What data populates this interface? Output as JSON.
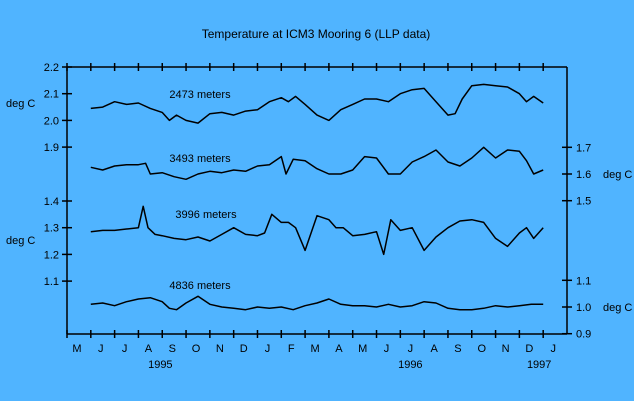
{
  "chart_data": {
    "type": "line",
    "title": "Temperature at ICM3 Mooring 6 (LLP data)",
    "x_range": [
      "1995-05-01",
      "1997-01-01"
    ],
    "x_ticks": [
      "M",
      "J",
      "J",
      "A",
      "S",
      "O",
      "N",
      "D",
      "J",
      "F",
      "M",
      "A",
      "M",
      "J",
      "J",
      "A",
      "S",
      "O",
      "N",
      "D",
      "J"
    ],
    "year_labels": [
      {
        "label": "1995",
        "month_index": 3.5
      },
      {
        "label": "1996",
        "month_index": 14
      },
      {
        "label": "1997",
        "month_index": 20
      }
    ],
    "left_axes": [
      {
        "unit": "deg C",
        "ticks": [
          "2.2",
          "2.1",
          "2.0",
          "1.9"
        ],
        "range": [
          1.9,
          2.2
        ]
      },
      {
        "unit": "deg C",
        "ticks": [
          "1.4",
          "1.3",
          "1.2",
          "1.1"
        ],
        "range": [
          1.1,
          1.4
        ]
      }
    ],
    "right_axes": [
      {
        "unit": "deg C",
        "ticks": [
          "1.7",
          "1.6",
          "1.5"
        ],
        "range": [
          1.5,
          1.7
        ]
      },
      {
        "unit": "deg C",
        "ticks": [
          "1.1",
          "1.0",
          "0.9"
        ],
        "range": [
          0.9,
          1.1
        ]
      }
    ],
    "series": [
      {
        "name": "2473 meters",
        "axis": "left-upper",
        "x_month": [
          1.0,
          1.5,
          2.0,
          2.5,
          3.0,
          3.5,
          4.0,
          4.3,
          4.6,
          5.0,
          5.5,
          6.0,
          6.5,
          7.0,
          7.5,
          8.0,
          8.5,
          9.0,
          9.3,
          9.6,
          10.0,
          10.5,
          11.0,
          11.5,
          12.0,
          12.5,
          13.0,
          13.5,
          14.0,
          14.5,
          15.0,
          15.5,
          16.0,
          16.3,
          16.6,
          17.0,
          17.5,
          18.0,
          18.5,
          19.0,
          19.3,
          19.6,
          20.0
        ],
        "values": [
          2.045,
          2.05,
          2.07,
          2.06,
          2.065,
          2.045,
          2.03,
          2.0,
          2.02,
          2.0,
          1.99,
          2.025,
          2.03,
          2.02,
          2.035,
          2.04,
          2.07,
          2.085,
          2.07,
          2.09,
          2.06,
          2.02,
          2.0,
          2.04,
          2.06,
          2.08,
          2.08,
          2.07,
          2.1,
          2.115,
          2.12,
          2.07,
          2.02,
          2.025,
          2.08,
          2.13,
          2.135,
          2.13,
          2.125,
          2.1,
          2.07,
          2.09,
          2.065
        ]
      },
      {
        "name": "3493 meters",
        "axis": "right-upper",
        "x_month": [
          1.0,
          1.5,
          2.0,
          2.5,
          3.0,
          3.3,
          3.5,
          4.0,
          4.5,
          5.0,
          5.5,
          6.0,
          6.5,
          7.0,
          7.5,
          8.0,
          8.5,
          9.0,
          9.2,
          9.5,
          10.0,
          10.5,
          11.0,
          11.5,
          12.0,
          12.5,
          13.0,
          13.5,
          14.0,
          14.5,
          15.0,
          15.5,
          16.0,
          16.5,
          17.0,
          17.5,
          18.0,
          18.5,
          19.0,
          19.3,
          19.6,
          20.0
        ],
        "values": [
          1.625,
          1.615,
          1.63,
          1.635,
          1.635,
          1.64,
          1.6,
          1.605,
          1.59,
          1.58,
          1.6,
          1.61,
          1.605,
          1.615,
          1.61,
          1.63,
          1.635,
          1.665,
          1.6,
          1.655,
          1.65,
          1.62,
          1.6,
          1.6,
          1.615,
          1.665,
          1.66,
          1.6,
          1.6,
          1.645,
          1.665,
          1.69,
          1.645,
          1.63,
          1.66,
          1.7,
          1.66,
          1.69,
          1.685,
          1.65,
          1.6,
          1.615
        ]
      },
      {
        "name": "3996 meters",
        "axis": "left-lower",
        "x_month": [
          1.0,
          1.5,
          2.0,
          2.5,
          3.0,
          3.2,
          3.4,
          3.7,
          4.0,
          4.5,
          5.0,
          5.5,
          6.0,
          6.5,
          7.0,
          7.5,
          8.0,
          8.3,
          8.6,
          9.0,
          9.3,
          9.6,
          10.0,
          10.5,
          11.0,
          11.3,
          11.6,
          12.0,
          12.5,
          13.0,
          13.3,
          13.6,
          14.0,
          14.5,
          15.0,
          15.5,
          16.0,
          16.5,
          17.0,
          17.5,
          18.0,
          18.5,
          19.0,
          19.3,
          19.6,
          20.0
        ],
        "values": [
          1.285,
          1.29,
          1.29,
          1.295,
          1.3,
          1.38,
          1.3,
          1.275,
          1.27,
          1.26,
          1.255,
          1.265,
          1.25,
          1.275,
          1.3,
          1.275,
          1.27,
          1.28,
          1.35,
          1.32,
          1.32,
          1.3,
          1.215,
          1.345,
          1.33,
          1.3,
          1.3,
          1.27,
          1.275,
          1.285,
          1.2,
          1.33,
          1.29,
          1.3,
          1.215,
          1.265,
          1.3,
          1.325,
          1.33,
          1.32,
          1.26,
          1.23,
          1.28,
          1.3,
          1.26,
          1.3
        ]
      },
      {
        "name": "4836 meters",
        "axis": "right-lower",
        "x_month": [
          1.0,
          1.5,
          2.0,
          2.5,
          3.0,
          3.5,
          4.0,
          4.3,
          4.6,
          5.0,
          5.5,
          6.0,
          6.5,
          7.0,
          7.5,
          8.0,
          8.5,
          9.0,
          9.5,
          10.0,
          10.5,
          11.0,
          11.5,
          12.0,
          12.5,
          13.0,
          13.5,
          14.0,
          14.5,
          15.0,
          15.5,
          16.0,
          16.5,
          17.0,
          17.5,
          18.0,
          18.5,
          19.0,
          19.5,
          20.0
        ],
        "values": [
          1.01,
          1.015,
          1.005,
          1.02,
          1.03,
          1.035,
          1.02,
          0.995,
          0.99,
          1.015,
          1.04,
          1.01,
          1.0,
          0.995,
          0.99,
          1.0,
          0.995,
          1.0,
          0.99,
          1.005,
          1.015,
          1.03,
          1.01,
          1.005,
          1.005,
          1.0,
          1.01,
          1.0,
          1.005,
          1.02,
          1.015,
          0.995,
          0.99,
          0.99,
          0.995,
          1.005,
          1.0,
          1.005,
          1.01,
          1.01
        ]
      }
    ],
    "grid": false,
    "legend": "none (inline labels)"
  },
  "labels": {
    "title": "Temperature at ICM3 Mooring 6 (LLP data)",
    "series_names": [
      "2473 meters",
      "3493 meters",
      "3996 meters",
      "4836 meters"
    ],
    "unit": "deg C"
  }
}
